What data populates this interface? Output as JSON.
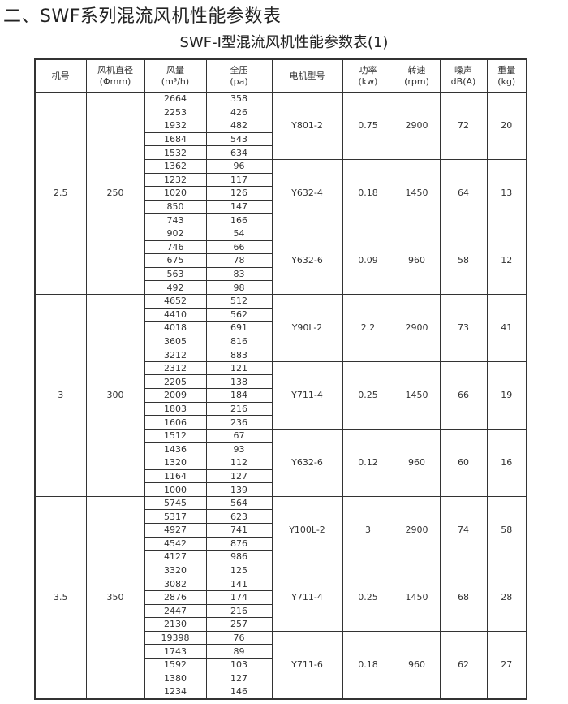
{
  "heading": "二、SWF系列混流风机性能参数表",
  "table_title": "SWF-I型混流风机性能参数表(1)",
  "columns": [
    {
      "l1": "机号",
      "l2": ""
    },
    {
      "l1": "风机直径",
      "l2": "(Φmm)"
    },
    {
      "l1": "风量",
      "l2": "(m³/h)"
    },
    {
      "l1": "全压",
      "l2": "(pa)"
    },
    {
      "l1": "电机型号",
      "l2": ""
    },
    {
      "l1": "功率",
      "l2": "(kw)"
    },
    {
      "l1": "转速",
      "l2": "(rpm)"
    },
    {
      "l1": "噪声",
      "l2": "dB(A)"
    },
    {
      "l1": "重量",
      "l2": "(kg)"
    }
  ],
  "groups": [
    {
      "machine": "2.5",
      "diameter": "250",
      "motors": [
        {
          "model": "Y801-2",
          "power": "0.75",
          "speed": "2900",
          "noise": "72",
          "weight": "20",
          "flow": [
            "2664",
            "2253",
            "1932",
            "1684",
            "1532"
          ],
          "pressure": [
            "358",
            "426",
            "482",
            "543",
            "634"
          ]
        },
        {
          "model": "Y632-4",
          "power": "0.18",
          "speed": "1450",
          "noise": "64",
          "weight": "13",
          "flow": [
            "1362",
            "1232",
            "1020",
            "850",
            "743"
          ],
          "pressure": [
            "96",
            "117",
            "126",
            "147",
            "166"
          ]
        },
        {
          "model": "Y632-6",
          "power": "0.09",
          "speed": "960",
          "noise": "58",
          "weight": "12",
          "flow": [
            "902",
            "746",
            "675",
            "563",
            "492"
          ],
          "pressure": [
            "54",
            "66",
            "78",
            "83",
            "98"
          ]
        }
      ]
    },
    {
      "machine": "3",
      "diameter": "300",
      "motors": [
        {
          "model": "Y90L-2",
          "power": "2.2",
          "speed": "2900",
          "noise": "73",
          "weight": "41",
          "flow": [
            "4652",
            "4410",
            "4018",
            "3605",
            "3212"
          ],
          "pressure": [
            "512",
            "562",
            "691",
            "816",
            "883"
          ]
        },
        {
          "model": "Y711-4",
          "power": "0.25",
          "speed": "1450",
          "noise": "66",
          "weight": "19",
          "flow": [
            "2312",
            "2205",
            "2009",
            "1803",
            "1606"
          ],
          "pressure": [
            "121",
            "138",
            "184",
            "216",
            "236"
          ]
        },
        {
          "model": "Y632-6",
          "power": "0.12",
          "speed": "960",
          "noise": "60",
          "weight": "16",
          "flow": [
            "1512",
            "1436",
            "1320",
            "1164",
            "1000"
          ],
          "pressure": [
            "67",
            "93",
            "112",
            "127",
            "139"
          ]
        }
      ]
    },
    {
      "machine": "3.5",
      "diameter": "350",
      "motors": [
        {
          "model": "Y100L-2",
          "power": "3",
          "speed": "2900",
          "noise": "74",
          "weight": "58",
          "flow": [
            "5745",
            "5317",
            "4927",
            "4542",
            "4127"
          ],
          "pressure": [
            "564",
            "623",
            "741",
            "876",
            "986"
          ]
        },
        {
          "model": "Y711-4",
          "power": "0.25",
          "speed": "1450",
          "noise": "68",
          "weight": "28",
          "flow": [
            "3320",
            "3082",
            "2876",
            "2447",
            "2130"
          ],
          "pressure": [
            "125",
            "141",
            "174",
            "216",
            "257"
          ]
        },
        {
          "model": "Y711-6",
          "power": "0.18",
          "speed": "960",
          "noise": "62",
          "weight": "27",
          "flow": [
            "19398",
            "1743",
            "1592",
            "1380",
            "1234"
          ],
          "pressure": [
            "76",
            "89",
            "103",
            "127",
            "146"
          ]
        }
      ]
    }
  ]
}
